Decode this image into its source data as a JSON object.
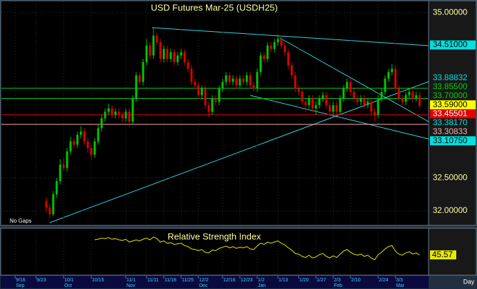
{
  "chart_data": {
    "type": "candlestick",
    "title": "USD Futures Mar-25 (USDH25)",
    "note": "No Gaps",
    "period": "Day",
    "up_color": "#00c800",
    "down_color": "#e00000",
    "ylim": [
      31.78,
      35.19
    ],
    "yticks": [
      {
        "value": 35,
        "label": "35.00000"
      },
      {
        "value": 32.5,
        "label": "32.50000"
      },
      {
        "value": 32,
        "label": "32.00000"
      }
    ],
    "grid": true,
    "categories": [
      null,
      null,
      "9/16",
      null,
      null,
      null,
      null,
      null,
      "9/23",
      null,
      null,
      null,
      null,
      null,
      null,
      null,
      "10/1",
      null,
      null,
      null,
      null,
      null,
      null,
      null,
      "10/15",
      null,
      null,
      null,
      null,
      null,
      null,
      null,
      null,
      null,
      "11/1",
      null,
      null,
      null,
      null,
      null,
      "11/11",
      null,
      null,
      null,
      null,
      "11/18",
      null,
      null,
      null,
      null,
      "11/25",
      null,
      null,
      null,
      null,
      "12/2",
      null,
      null,
      null,
      null,
      null,
      null,
      "12/16",
      null,
      null,
      null,
      null,
      "12/23",
      null,
      null,
      null,
      null,
      "1/2",
      null,
      null,
      null,
      null,
      null,
      "1/13",
      null,
      null,
      null,
      null,
      null,
      "1/20",
      null,
      null,
      null,
      null,
      "1/27",
      null,
      null,
      null,
      null,
      "2/3",
      null,
      null,
      null,
      null,
      "2/10",
      null,
      null,
      null,
      null,
      null,
      null,
      null,
      "2/24",
      null,
      null,
      null,
      null,
      "3/3",
      null,
      null,
      null,
      null,
      null,
      null,
      null
    ],
    "months": [
      null,
      null,
      "Sep",
      null,
      null,
      null,
      null,
      null,
      null,
      null,
      null,
      null,
      null,
      null,
      null,
      null,
      "Oct",
      null,
      null,
      null,
      null,
      null,
      null,
      null,
      null,
      null,
      null,
      null,
      null,
      null,
      null,
      null,
      null,
      null,
      "Nov",
      null,
      null,
      null,
      null,
      null,
      null,
      null,
      null,
      null,
      null,
      null,
      null,
      null,
      null,
      null,
      null,
      null,
      null,
      null,
      null,
      "Dec",
      null,
      null,
      null,
      null,
      null,
      null,
      null,
      null,
      null,
      null,
      null,
      null,
      null,
      null,
      null,
      null,
      "Jan",
      null,
      null,
      null,
      null,
      null,
      null,
      null,
      null,
      null,
      null,
      null,
      null,
      null,
      null,
      null,
      null,
      null,
      null,
      null,
      null,
      null,
      "Feb",
      null,
      null,
      null,
      null,
      null,
      null,
      null,
      null,
      null,
      null,
      null,
      null,
      null,
      null,
      null,
      null,
      null,
      "Mar",
      null,
      null,
      null,
      null,
      null,
      null,
      null
    ],
    "candles": [
      null,
      null,
      null,
      null,
      null,
      null,
      null,
      null,
      null,
      null,
      null,
      [
        32.15,
        32.2,
        31.98,
        32.05
      ],
      [
        32.05,
        32.1,
        31.89,
        31.95
      ],
      [
        31.95,
        32.3,
        31.92,
        32.25
      ],
      [
        32.25,
        32.5,
        32.2,
        32.45
      ],
      [
        32.45,
        32.78,
        32.4,
        32.7
      ],
      [
        32.7,
        32.8,
        32.6,
        32.65
      ],
      [
        32.65,
        32.95,
        32.6,
        32.9
      ],
      [
        32.9,
        33.12,
        32.85,
        33.05
      ],
      [
        33.05,
        33.1,
        32.95,
        33.0
      ],
      [
        33.0,
        33.2,
        32.95,
        33.15
      ],
      [
        33.15,
        33.28,
        33.1,
        33.2
      ],
      [
        33.2,
        33.25,
        33.0,
        33.05
      ],
      [
        33.05,
        33.1,
        32.88,
        32.95
      ],
      [
        32.95,
        33.0,
        32.78,
        32.85
      ],
      [
        32.85,
        33.1,
        32.8,
        33.05
      ],
      [
        33.05,
        33.3,
        33.0,
        33.25
      ],
      [
        33.25,
        33.45,
        33.2,
        33.4
      ],
      [
        33.4,
        33.55,
        33.35,
        33.5
      ],
      [
        33.5,
        33.62,
        33.45,
        33.55
      ],
      [
        33.55,
        33.6,
        33.4,
        33.45
      ],
      [
        33.45,
        33.55,
        33.4,
        33.5
      ],
      [
        33.5,
        33.55,
        33.4,
        33.45
      ],
      [
        33.45,
        33.5,
        33.35,
        33.4
      ],
      [
        33.4,
        33.55,
        33.35,
        33.5
      ],
      [
        33.5,
        33.55,
        33.28,
        33.35
      ],
      [
        33.35,
        33.75,
        33.3,
        33.7
      ],
      [
        33.7,
        34.1,
        33.65,
        34.05
      ],
      [
        34.05,
        34.1,
        33.9,
        33.95
      ],
      [
        33.95,
        34.3,
        33.9,
        34.25
      ],
      [
        34.25,
        34.6,
        34.2,
        34.5
      ],
      [
        34.5,
        34.55,
        34.3,
        34.35
      ],
      [
        34.35,
        34.78,
        34.3,
        34.65
      ],
      [
        34.65,
        34.7,
        34.5,
        34.55
      ],
      [
        34.55,
        34.6,
        34.25,
        34.3
      ],
      [
        34.3,
        34.5,
        34.25,
        34.45
      ],
      [
        34.45,
        34.5,
        34.25,
        34.3
      ],
      [
        34.3,
        34.45,
        34.25,
        34.4
      ],
      [
        34.4,
        34.45,
        34.2,
        34.25
      ],
      [
        34.25,
        34.4,
        34.2,
        34.35
      ],
      [
        34.35,
        34.45,
        34.3,
        34.4
      ],
      [
        34.4,
        34.45,
        34.2,
        34.25
      ],
      [
        34.25,
        34.3,
        34.1,
        34.15
      ],
      [
        34.15,
        34.2,
        33.9,
        33.95
      ],
      [
        33.95,
        34.0,
        33.85,
        33.9
      ],
      [
        33.9,
        33.95,
        33.7,
        33.75
      ],
      [
        33.75,
        33.9,
        33.7,
        33.85
      ],
      [
        33.85,
        33.9,
        33.55,
        33.6
      ],
      [
        33.6,
        33.65,
        33.42,
        33.5
      ],
      [
        33.5,
        33.75,
        33.45,
        33.7
      ],
      [
        33.7,
        33.75,
        33.6,
        33.65
      ],
      [
        33.65,
        33.9,
        33.6,
        33.85
      ],
      [
        33.85,
        34.0,
        33.8,
        33.95
      ],
      [
        33.95,
        34.1,
        33.9,
        34.05
      ],
      [
        34.05,
        34.1,
        33.9,
        33.95
      ],
      [
        33.95,
        34.05,
        33.9,
        34.0
      ],
      [
        34.0,
        34.05,
        33.85,
        33.9
      ],
      [
        33.9,
        34.05,
        33.85,
        34.0
      ],
      [
        34.0,
        34.05,
        33.9,
        33.95
      ],
      [
        33.95,
        34.1,
        33.9,
        34.05
      ],
      [
        34.05,
        34.1,
        33.85,
        33.9
      ],
      [
        33.9,
        33.95,
        33.8,
        33.85
      ],
      [
        33.85,
        34.15,
        33.8,
        34.1
      ],
      [
        34.1,
        34.4,
        34.05,
        34.35
      ],
      [
        34.35,
        34.4,
        34.25,
        34.3
      ],
      [
        34.3,
        34.55,
        34.25,
        34.5
      ],
      [
        34.5,
        34.55,
        34.4,
        34.45
      ],
      [
        34.45,
        34.6,
        34.4,
        34.55
      ],
      [
        34.55,
        34.67,
        34.5,
        34.6
      ],
      [
        34.6,
        34.65,
        34.45,
        34.5
      ],
      [
        34.5,
        34.55,
        34.35,
        34.4
      ],
      [
        34.4,
        34.45,
        34.15,
        34.2
      ],
      [
        34.2,
        34.25,
        34.0,
        34.05
      ],
      [
        34.05,
        34.1,
        33.8,
        33.85
      ],
      [
        33.85,
        33.9,
        33.75,
        33.8
      ],
      [
        33.8,
        33.85,
        33.6,
        33.65
      ],
      [
        33.65,
        33.7,
        33.5,
        33.6
      ],
      [
        33.6,
        33.75,
        33.55,
        33.7
      ],
      [
        33.7,
        33.75,
        33.5,
        33.55
      ],
      [
        33.55,
        33.65,
        33.45,
        33.6
      ],
      [
        33.6,
        33.75,
        33.55,
        33.7
      ],
      [
        33.7,
        33.8,
        33.65,
        33.75
      ],
      [
        33.75,
        33.8,
        33.55,
        33.6
      ],
      [
        33.6,
        33.65,
        33.42,
        33.5
      ],
      [
        33.5,
        33.65,
        33.45,
        33.6
      ],
      [
        33.6,
        33.65,
        33.45,
        33.5
      ],
      [
        33.5,
        33.75,
        33.45,
        33.7
      ],
      [
        33.7,
        33.9,
        33.65,
        33.85
      ],
      [
        33.85,
        34.0,
        33.8,
        33.95
      ],
      [
        33.95,
        34.0,
        33.75,
        33.8
      ],
      [
        33.8,
        33.85,
        33.65,
        33.7
      ],
      [
        33.7,
        33.75,
        33.6,
        33.65
      ],
      [
        33.65,
        33.75,
        33.6,
        33.7
      ],
      [
        33.7,
        33.75,
        33.55,
        33.6
      ],
      [
        33.6,
        33.7,
        33.55,
        33.65
      ],
      [
        33.65,
        33.7,
        33.45,
        33.5
      ],
      [
        33.5,
        33.55,
        33.35,
        33.45
      ],
      [
        33.45,
        33.75,
        33.4,
        33.7
      ],
      [
        33.7,
        33.85,
        33.65,
        33.8
      ],
      [
        33.8,
        34.05,
        33.75,
        34.0
      ],
      [
        34.0,
        34.15,
        33.95,
        34.1
      ],
      [
        34.1,
        34.22,
        34.05,
        34.15
      ],
      [
        34.15,
        34.2,
        33.8,
        33.85
      ],
      [
        33.85,
        33.9,
        33.65,
        33.7
      ],
      [
        33.7,
        33.75,
        33.6,
        33.65
      ],
      [
        33.65,
        33.8,
        33.6,
        33.75
      ],
      [
        33.75,
        33.85,
        33.7,
        33.8
      ],
      [
        33.8,
        33.85,
        33.65,
        33.7
      ],
      [
        33.7,
        33.8,
        33.65,
        33.75
      ],
      [
        33.75,
        33.8,
        33.55,
        33.59
      ]
    ],
    "levels": [
      {
        "value": 34.51,
        "label": "34.51000",
        "color": "#00e0e0",
        "boxed": true,
        "line": false
      },
      {
        "value": 33.88832,
        "label": "33.88832",
        "color": "#00e0e0",
        "boxed": false,
        "line": false
      },
      {
        "value": 33.855,
        "label": "33.85500",
        "color": "#00d000",
        "boxed": false,
        "line": true
      },
      {
        "value": 33.7,
        "label": "33.70000",
        "color": "#00d000",
        "boxed": false,
        "line": true
      },
      {
        "value": 33.59,
        "label": "33.59000",
        "color": "#ffff00",
        "boxed": true,
        "line": false
      },
      {
        "value": 33.45501,
        "label": "33.45501",
        "color": "#e00000",
        "boxed": true,
        "line": true
      },
      {
        "value": 33.3817,
        "label": "33.38170",
        "color": "#00e0e0",
        "boxed": false,
        "line": false
      },
      {
        "value": 33.30833,
        "label": "33.30833",
        "color": "#ffb0b0",
        "boxed": false,
        "line": true
      },
      {
        "value": 33.1075,
        "label": "33.10750",
        "color": "#00e0e0",
        "boxed": true,
        "line": false
      }
    ],
    "rsi": {
      "title": "Relative Strength Index",
      "color": "#e8e800",
      "ylim": [
        10,
        90
      ],
      "values": [
        null,
        null,
        null,
        null,
        null,
        null,
        null,
        null,
        null,
        null,
        null,
        null,
        null,
        null,
        null,
        null,
        null,
        null,
        null,
        null,
        null,
        null,
        null,
        null,
        null,
        72,
        73,
        75,
        74,
        76,
        73,
        74,
        72,
        71,
        73,
        68,
        70,
        72,
        70,
        73,
        75,
        72,
        77,
        74,
        68,
        70,
        66,
        67,
        64,
        65,
        66,
        62,
        60,
        56,
        55,
        53,
        55,
        50,
        49,
        54,
        53,
        57,
        59,
        61,
        58,
        60,
        57,
        59,
        58,
        60,
        56,
        55,
        61,
        66,
        64,
        68,
        66,
        68,
        70,
        66,
        63,
        58,
        54,
        48,
        47,
        43,
        41,
        45,
        40,
        42,
        46,
        48,
        43,
        40,
        44,
        41,
        47,
        52,
        55,
        50,
        47,
        45,
        47,
        43,
        45,
        40,
        37,
        46,
        50,
        56,
        60,
        62,
        52,
        47,
        45,
        49,
        51,
        47,
        49,
        45.57
      ]
    }
  }
}
